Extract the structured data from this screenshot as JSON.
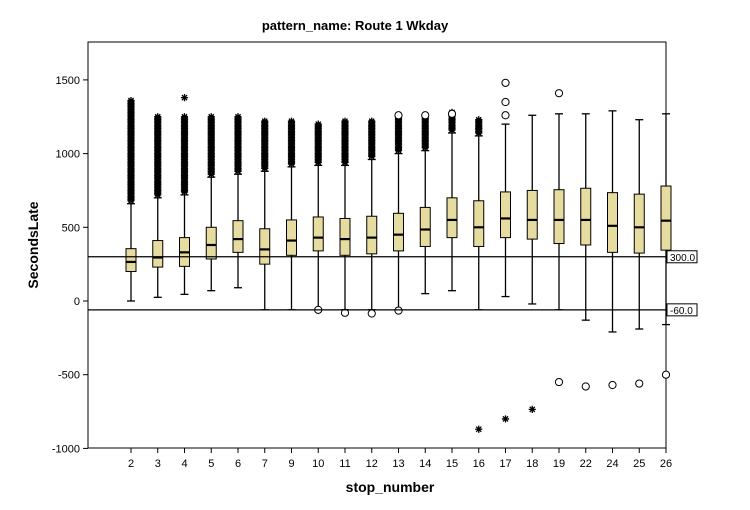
{
  "chart_data": {
    "type": "boxplot",
    "title": "pattern_name: Route 1 Wkday",
    "xlabel": "stop_number",
    "ylabel": "SecondsLate",
    "ylim": [
      -1000,
      1750
    ],
    "yticks": [
      -1000,
      -500,
      0,
      500,
      1000,
      1500
    ],
    "grid": false,
    "colors": {
      "box_fill": "#e6dca0",
      "line": "#000000"
    },
    "reference_lines": [
      {
        "value": 300,
        "label": "300.0"
      },
      {
        "value": -60,
        "label": "-60.0"
      }
    ],
    "categories": [
      "2",
      "3",
      "4",
      "5",
      "6",
      "7",
      "9",
      "10",
      "11",
      "12",
      "13",
      "14",
      "15",
      "16",
      "17",
      "18",
      "19",
      "22",
      "24",
      "25",
      "26"
    ],
    "boxes": [
      {
        "min": 0,
        "q1": 200,
        "median": 265,
        "q3": 355,
        "max": 660,
        "outlier_circles": [],
        "outlier_stars_range": [
          680,
          1360
        ],
        "extreme_stars": []
      },
      {
        "min": 25,
        "q1": 230,
        "median": 295,
        "q3": 410,
        "max": 700,
        "outlier_circles": [],
        "outlier_stars_range": [
          720,
          1250
        ],
        "extreme_stars": []
      },
      {
        "min": 45,
        "q1": 235,
        "median": 330,
        "q3": 430,
        "max": 720,
        "outlier_circles": [],
        "outlier_stars_range": [
          740,
          1250
        ],
        "extreme_stars": [
          1380
        ]
      },
      {
        "min": 70,
        "q1": 285,
        "median": 380,
        "q3": 500,
        "max": 840,
        "outlier_circles": [],
        "outlier_stars_range": [
          860,
          1250
        ],
        "extreme_stars": []
      },
      {
        "min": 90,
        "q1": 330,
        "median": 420,
        "q3": 545,
        "max": 860,
        "outlier_circles": [],
        "outlier_stars_range": [
          880,
          1250
        ],
        "extreme_stars": []
      },
      {
        "min": -60,
        "q1": 250,
        "median": 350,
        "q3": 490,
        "max": 880,
        "outlier_circles": [],
        "outlier_stars_range": [
          900,
          1220
        ],
        "extreme_stars": []
      },
      {
        "min": -60,
        "q1": 310,
        "median": 410,
        "q3": 550,
        "max": 910,
        "outlier_circles": [],
        "outlier_stars_range": [
          930,
          1220
        ],
        "extreme_stars": []
      },
      {
        "min": -60,
        "q1": 340,
        "median": 430,
        "q3": 570,
        "max": 920,
        "outlier_circles": [
          -60
        ],
        "outlier_stars_range": [
          940,
          1200
        ],
        "extreme_stars": []
      },
      {
        "min": -60,
        "q1": 310,
        "median": 420,
        "q3": 560,
        "max": 920,
        "outlier_circles": [
          -80
        ],
        "outlier_stars_range": [
          940,
          1220
        ],
        "extreme_stars": []
      },
      {
        "min": -60,
        "q1": 320,
        "median": 430,
        "q3": 575,
        "max": 960,
        "outlier_circles": [
          -85
        ],
        "outlier_stars_range": [
          980,
          1220
        ],
        "extreme_stars": []
      },
      {
        "min": -60,
        "q1": 340,
        "median": 450,
        "q3": 595,
        "max": 1000,
        "outlier_circles": [
          -65,
          1260
        ],
        "outlier_stars_range": [
          1020,
          1250
        ],
        "extreme_stars": []
      },
      {
        "min": 50,
        "q1": 370,
        "median": 485,
        "q3": 635,
        "max": 1020,
        "outlier_circles": [
          1260
        ],
        "outlier_stars_range": [
          1040,
          1250
        ],
        "extreme_stars": []
      },
      {
        "min": 70,
        "q1": 430,
        "median": 550,
        "q3": 700,
        "max": 1140,
        "outlier_circles": [
          1270
        ],
        "outlier_stars_range": [
          1160,
          1280
        ],
        "extreme_stars": []
      },
      {
        "min": -60,
        "q1": 370,
        "median": 500,
        "q3": 680,
        "max": 1120,
        "outlier_circles": [],
        "outlier_stars_range": [
          1140,
          1230
        ],
        "extreme_stars": [
          -870
        ]
      },
      {
        "min": 30,
        "q1": 430,
        "median": 560,
        "q3": 740,
        "max": 1200,
        "outlier_circles": [
          1260,
          1350,
          1480
        ],
        "outlier_stars_range": [],
        "extreme_stars": [
          -800
        ]
      },
      {
        "min": -20,
        "q1": 420,
        "median": 550,
        "q3": 750,
        "max": 1260,
        "outlier_circles": [],
        "outlier_stars_range": [],
        "extreme_stars": [
          -735
        ]
      },
      {
        "min": -60,
        "q1": 390,
        "median": 550,
        "q3": 755,
        "max": 1270,
        "outlier_circles": [
          1410,
          -550
        ],
        "outlier_stars_range": [],
        "extreme_stars": []
      },
      {
        "min": -130,
        "q1": 380,
        "median": 550,
        "q3": 765,
        "max": 1270,
        "outlier_circles": [
          -580
        ],
        "outlier_stars_range": [],
        "extreme_stars": []
      },
      {
        "min": -210,
        "q1": 330,
        "median": 510,
        "q3": 735,
        "max": 1290,
        "outlier_circles": [
          -570
        ],
        "outlier_stars_range": [],
        "extreme_stars": []
      },
      {
        "min": -190,
        "q1": 325,
        "median": 500,
        "q3": 725,
        "max": 1230,
        "outlier_circles": [
          -560
        ],
        "outlier_stars_range": [],
        "extreme_stars": []
      },
      {
        "min": -160,
        "q1": 345,
        "median": 545,
        "q3": 780,
        "max": 1270,
        "outlier_circles": [
          -500
        ],
        "outlier_stars_range": [],
        "extreme_stars": []
      }
    ]
  }
}
